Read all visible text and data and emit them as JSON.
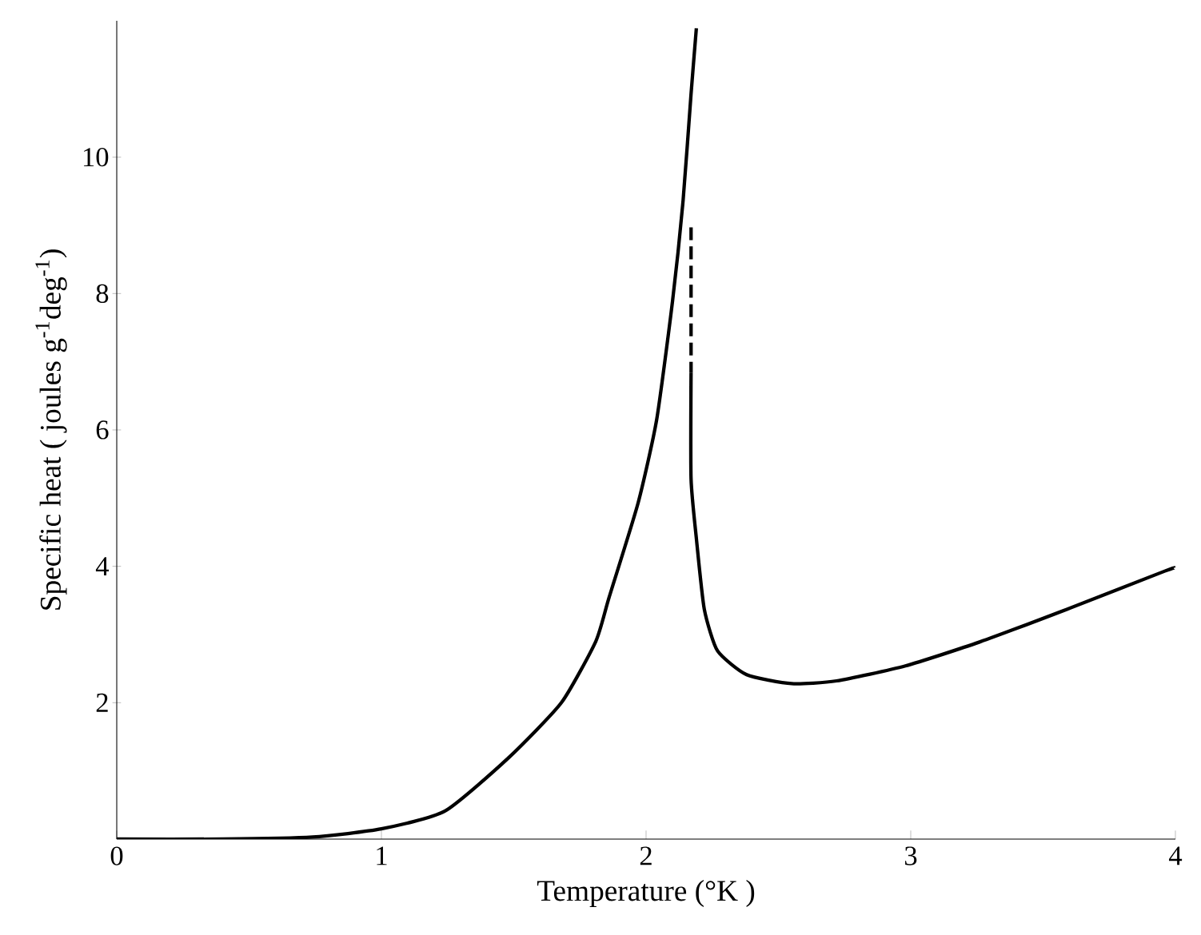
{
  "chart_data": {
    "type": "line",
    "xlabel": "Temperature (°K )",
    "ylabel": "Specific heat  ( joules g$^{-1}$deg$^{-1}$)",
    "xlim": [
      0,
      4
    ],
    "ylim": [
      0,
      12
    ],
    "xticks": [
      0,
      1,
      2,
      3,
      4
    ],
    "yticks": [
      2,
      4,
      6,
      8,
      10
    ],
    "marker": "none",
    "series": [
      {
        "color": "#000000",
        "line_style": "solid",
        "x": [
          0,
          0.4,
          0.74,
          1.0,
          1.24,
          1.48,
          1.68,
          1.81,
          1.86,
          1.97,
          2.04,
          2.1,
          2.14,
          2.17,
          2.19
        ],
        "values": [
          0,
          0,
          0.03,
          0.15,
          0.41,
          1.19,
          2.0,
          2.9,
          3.54,
          4.93,
          6.15,
          7.89,
          9.37,
          10.93,
          11.89
        ]
      },
      {
        "color": "#000000",
        "line_style": "dashed",
        "x": [
          2.17,
          2.17
        ],
        "values": [
          8.97,
          6.84
        ]
      },
      {
        "color": "#000000",
        "line_style": "solid",
        "x": [
          2.17,
          2.17,
          2.19,
          2.22,
          2.27,
          2.38,
          2.55,
          2.72,
          2.98,
          3.26,
          3.59,
          3.96,
          4.0
        ],
        "values": [
          6.84,
          5.28,
          4.41,
          3.37,
          2.76,
          2.41,
          2.28,
          2.32,
          2.54,
          2.89,
          3.37,
          3.93,
          3.98
        ]
      }
    ]
  }
}
